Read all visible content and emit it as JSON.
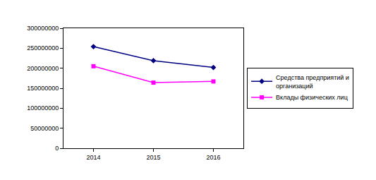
{
  "chart_data": {
    "type": "line",
    "categories": [
      "2014",
      "2015",
      "2016"
    ],
    "series": [
      {
        "name": "Средства предприятий и организаций",
        "color": "#000080",
        "marker": "diamond",
        "values": [
          254000000,
          219000000,
          202000000
        ]
      },
      {
        "name": "Вклады физических лиц",
        "color": "#ff00ff",
        "marker": "square",
        "values": [
          205000000,
          164000000,
          167000000
        ]
      }
    ],
    "ylim": [
      0,
      300000000
    ],
    "yticks": [
      0,
      50000000,
      100000000,
      150000000,
      200000000,
      250000000,
      300000000
    ],
    "grid": false,
    "legend": "right"
  }
}
